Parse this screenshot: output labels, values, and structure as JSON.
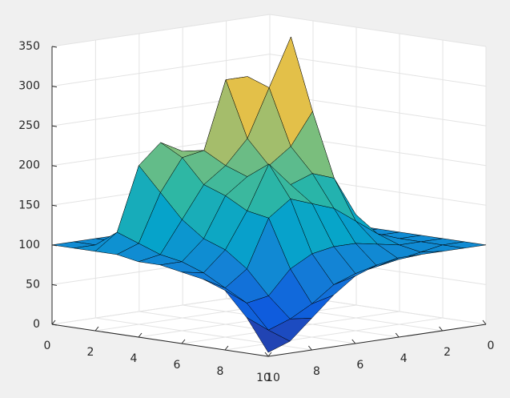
{
  "chart_data": {
    "type": "surface",
    "x": [
      0,
      1,
      2,
      3,
      4,
      5,
      6,
      7,
      8,
      9,
      10
    ],
    "y": [
      0,
      1,
      2,
      3,
      4,
      5,
      6,
      7,
      8,
      9,
      10
    ],
    "z": [
      [
        100,
        100,
        100,
        100,
        100,
        100,
        100,
        100,
        100,
        100,
        100
      ],
      [
        100,
        100,
        100,
        100,
        100,
        100,
        100,
        100,
        100,
        100,
        100
      ],
      [
        100,
        100,
        105,
        120,
        150,
        190,
        210,
        225,
        200,
        120,
        100
      ],
      [
        100,
        100,
        120,
        160,
        300,
        300,
        215,
        210,
        170,
        110,
        100
      ],
      [
        100,
        100,
        130,
        350,
        290,
        230,
        200,
        180,
        140,
        100,
        95
      ],
      [
        100,
        100,
        150,
        260,
        220,
        200,
        190,
        170,
        120,
        95,
        95
      ],
      [
        100,
        100,
        130,
        180,
        190,
        180,
        210,
        155,
        110,
        85,
        90
      ],
      [
        100,
        100,
        110,
        130,
        150,
        160,
        170,
        150,
        90,
        70,
        85
      ],
      [
        100,
        100,
        100,
        105,
        110,
        110,
        105,
        90,
        60,
        55,
        75
      ],
      [
        100,
        100,
        95,
        90,
        85,
        80,
        70,
        50,
        35,
        25,
        45
      ],
      [
        100,
        100,
        100,
        100,
        100,
        95,
        85,
        65,
        40,
        15,
        5
      ]
    ],
    "xlim": [
      0,
      10
    ],
    "ylim": [
      0,
      10
    ],
    "zlim": [
      0,
      350
    ],
    "xticks": [
      0,
      2,
      4,
      6,
      8,
      10
    ],
    "yticks": [
      0,
      2,
      4,
      6,
      8,
      10
    ],
    "zticks": [
      0,
      50,
      100,
      150,
      200,
      250,
      300,
      350
    ],
    "grid": true,
    "edgecolor": "#000000",
    "colormap": [
      "#352a87",
      "#0f5cdd",
      "#1481d6",
      "#06a4ca",
      "#2eb7a4",
      "#87bf77",
      "#d1bb59",
      "#fec832",
      "#f9fb0e"
    ]
  }
}
